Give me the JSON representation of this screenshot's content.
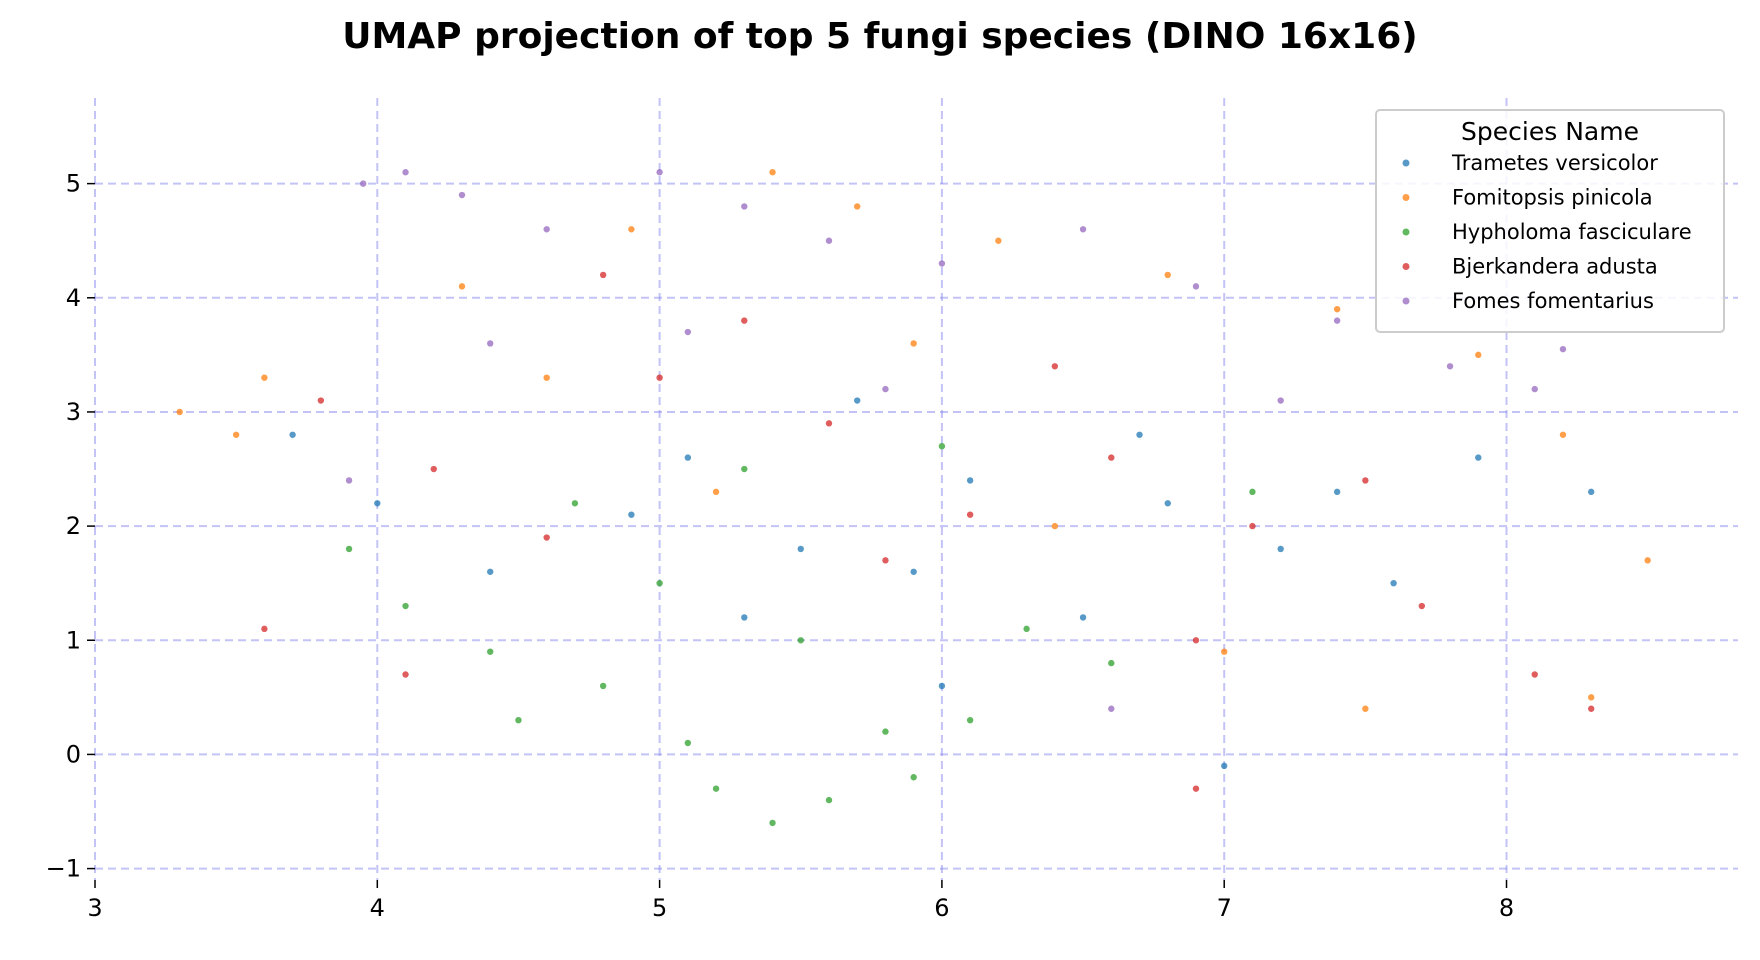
{
  "chart_data": {
    "type": "scatter",
    "title": "UMAP projection of top 5 fungi species (DINO 16x16)",
    "xlabel": "",
    "ylabel": "",
    "xlim": [
      3.0,
      8.82
    ],
    "ylim": [
      -1.1,
      5.75
    ],
    "x_ticks": [
      3,
      4,
      5,
      6,
      7,
      8
    ],
    "y_ticks": [
      -1,
      0,
      1,
      2,
      3,
      4,
      5
    ],
    "x_tick_labels": [
      "3",
      "4",
      "5",
      "6",
      "7",
      "8"
    ],
    "y_tick_labels": [
      "−1",
      "0",
      "1",
      "2",
      "3",
      "4",
      "5"
    ],
    "grid": true,
    "legend_placement": "top-right",
    "legend_title": "Species Name",
    "series": [
      {
        "name": "Trametes versicolor",
        "color": "#1f77b4",
        "points": [
          [
            5.1,
            2.6
          ],
          [
            5.5,
            1.8
          ],
          [
            6.1,
            2.4
          ],
          [
            6.8,
            2.2
          ],
          [
            7.2,
            1.8
          ],
          [
            7.6,
            1.5
          ],
          [
            4.4,
            1.6
          ],
          [
            4.9,
            2.1
          ],
          [
            5.7,
            3.1
          ],
          [
            6.5,
            1.2
          ],
          [
            7.9,
            2.6
          ],
          [
            8.3,
            2.3
          ],
          [
            6.0,
            0.6
          ],
          [
            7.0,
            -0.1
          ],
          [
            4.0,
            2.2
          ],
          [
            3.7,
            2.8
          ],
          [
            5.3,
            1.2
          ],
          [
            6.7,
            2.8
          ],
          [
            7.4,
            2.3
          ],
          [
            5.9,
            1.6
          ]
        ]
      },
      {
        "name": "Fomitopsis pinicola",
        "color": "#ff7f0e",
        "points": [
          [
            3.3,
            3.0
          ],
          [
            3.5,
            2.8
          ],
          [
            3.6,
            3.3
          ],
          [
            4.3,
            4.1
          ],
          [
            4.9,
            4.6
          ],
          [
            5.4,
            5.1
          ],
          [
            5.7,
            4.8
          ],
          [
            6.2,
            4.5
          ],
          [
            6.8,
            4.2
          ],
          [
            7.4,
            3.9
          ],
          [
            7.9,
            3.5
          ],
          [
            8.2,
            2.8
          ],
          [
            8.5,
            1.7
          ],
          [
            8.3,
            0.5
          ],
          [
            7.5,
            0.4
          ],
          [
            7.0,
            0.9
          ],
          [
            5.2,
            2.3
          ],
          [
            6.4,
            2.0
          ],
          [
            4.6,
            3.3
          ],
          [
            5.9,
            3.6
          ]
        ]
      },
      {
        "name": "Hypholoma fasciculare",
        "color": "#2ca02c",
        "points": [
          [
            5.2,
            -0.3
          ],
          [
            5.4,
            -0.6
          ],
          [
            5.6,
            -0.4
          ],
          [
            5.1,
            0.1
          ],
          [
            5.8,
            0.2
          ],
          [
            4.8,
            0.6
          ],
          [
            6.1,
            0.3
          ],
          [
            4.4,
            0.9
          ],
          [
            4.1,
            1.3
          ],
          [
            3.9,
            1.8
          ],
          [
            5.0,
            1.5
          ],
          [
            5.5,
            1.0
          ],
          [
            6.3,
            1.1
          ],
          [
            6.6,
            0.8
          ],
          [
            4.7,
            2.2
          ],
          [
            5.3,
            2.5
          ],
          [
            6.0,
            2.7
          ],
          [
            7.1,
            2.3
          ],
          [
            4.5,
            0.3
          ],
          [
            5.9,
            -0.2
          ]
        ]
      },
      {
        "name": "Bjerkandera adusta",
        "color": "#d62728",
        "points": [
          [
            3.8,
            3.1
          ],
          [
            3.6,
            1.1
          ],
          [
            4.2,
            2.5
          ],
          [
            4.6,
            1.9
          ],
          [
            5.0,
            3.3
          ],
          [
            5.6,
            2.9
          ],
          [
            6.1,
            2.1
          ],
          [
            6.6,
            2.6
          ],
          [
            7.1,
            2.0
          ],
          [
            7.7,
            1.3
          ],
          [
            8.1,
            0.7
          ],
          [
            8.3,
            0.4
          ],
          [
            6.9,
            -0.3
          ],
          [
            5.3,
            3.8
          ],
          [
            4.8,
            4.2
          ],
          [
            6.4,
            3.4
          ],
          [
            7.5,
            2.4
          ],
          [
            4.1,
            0.7
          ],
          [
            5.8,
            1.7
          ],
          [
            6.9,
            1.0
          ]
        ]
      },
      {
        "name": "Fomes fomentarius",
        "color": "#9467bd",
        "points": [
          [
            3.95,
            5.0
          ],
          [
            4.1,
            5.1
          ],
          [
            4.3,
            4.9
          ],
          [
            4.6,
            4.6
          ],
          [
            5.0,
            5.1
          ],
          [
            5.3,
            4.8
          ],
          [
            5.6,
            4.5
          ],
          [
            6.0,
            4.3
          ],
          [
            6.5,
            4.6
          ],
          [
            6.9,
            4.1
          ],
          [
            7.4,
            3.8
          ],
          [
            7.8,
            3.4
          ],
          [
            8.1,
            3.2
          ],
          [
            8.2,
            3.55
          ],
          [
            4.4,
            3.6
          ],
          [
            5.1,
            3.7
          ],
          [
            5.8,
            3.2
          ],
          [
            7.2,
            3.1
          ],
          [
            3.9,
            2.4
          ],
          [
            6.6,
            0.4
          ]
        ]
      }
    ]
  }
}
